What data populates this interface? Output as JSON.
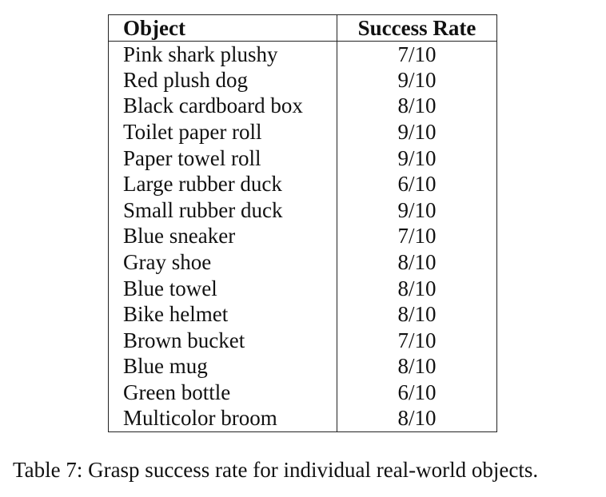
{
  "table": {
    "headers": [
      "Object",
      "Success Rate"
    ],
    "rows": [
      [
        "Pink shark plushy",
        "7/10"
      ],
      [
        "Red plush dog",
        "9/10"
      ],
      [
        "Black cardboard box",
        "8/10"
      ],
      [
        "Toilet paper roll",
        "9/10"
      ],
      [
        "Paper towel roll",
        "9/10"
      ],
      [
        "Large rubber duck",
        "6/10"
      ],
      [
        "Small rubber duck",
        "9/10"
      ],
      [
        "Blue sneaker",
        "7/10"
      ],
      [
        "Gray shoe",
        "8/10"
      ],
      [
        "Blue towel",
        "8/10"
      ],
      [
        "Bike helmet",
        "8/10"
      ],
      [
        "Brown bucket",
        "7/10"
      ],
      [
        "Blue mug",
        "8/10"
      ],
      [
        "Green bottle",
        "6/10"
      ],
      [
        "Multicolor broom",
        "8/10"
      ]
    ]
  },
  "caption": "Table 7: Grasp success rate for individual real-world objects."
}
